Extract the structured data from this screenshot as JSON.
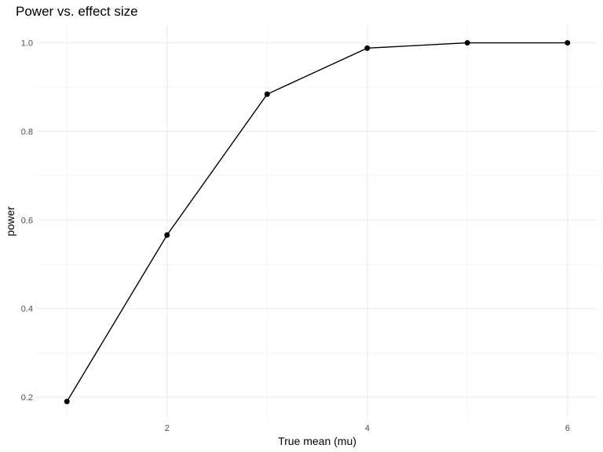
{
  "colors": {
    "background": "#ffffff",
    "grid_major": "#ebebeb",
    "grid_minor": "#f5f5f5",
    "line": "#000000",
    "point": "#000000",
    "tick_text": "#4d4d4d"
  },
  "chart_data": {
    "type": "line",
    "title": "Power vs. effect size",
    "xlabel": "True mean (mu)",
    "ylabel": "power",
    "x": [
      1,
      2,
      3,
      4,
      5,
      6
    ],
    "series": [
      {
        "values": [
          0.19,
          0.566,
          0.884,
          0.988,
          1.0,
          1.0
        ],
        "markers": true
      }
    ],
    "xlim": [
      0.7,
      6.3
    ],
    "ylim": [
      0.154,
      1.04
    ],
    "x_ticks": [
      2,
      4,
      6
    ],
    "x_tick_labels": [
      "2",
      "4",
      "6"
    ],
    "y_ticks": [
      0.2,
      0.4,
      0.6,
      0.8,
      1.0
    ],
    "y_tick_labels": [
      "0.2",
      "0.4",
      "0.6",
      "0.8",
      "1.0"
    ],
    "grid": true,
    "legend": "none"
  }
}
